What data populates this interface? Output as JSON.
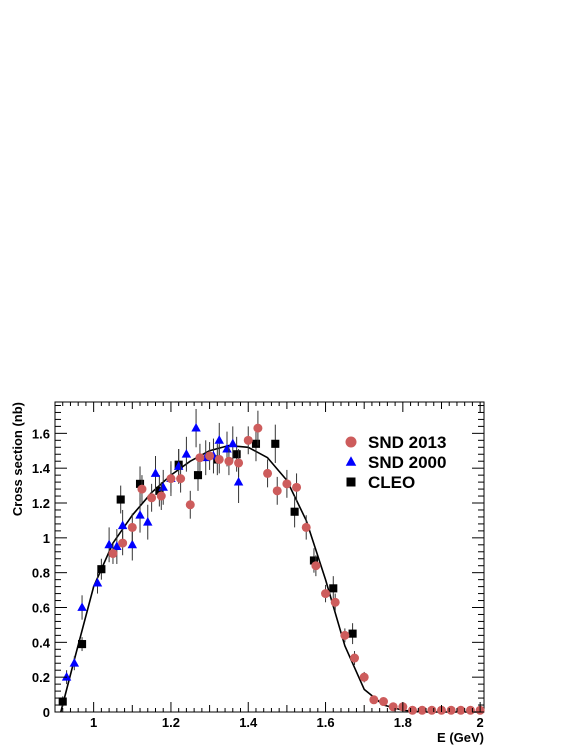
{
  "chart_data": {
    "type": "scatter",
    "xlabel": "E (GeV)",
    "ylabel": "Cross section (nb)",
    "xlim": [
      0.9,
      2.01
    ],
    "ylim": [
      0,
      1.78
    ],
    "x_ticks": [
      1,
      1.2,
      1.4,
      1.6,
      1.8,
      2
    ],
    "y_ticks": [
      0,
      0.2,
      0.4,
      0.6,
      0.8,
      1,
      1.2,
      1.4,
      1.6
    ],
    "legend_position": "top-right",
    "grid": false,
    "series": [
      {
        "name": "SND 2013",
        "marker": "circle",
        "color": "#cd5c5c",
        "points": [
          [
            1.05,
            0.91,
            0.06
          ],
          [
            1.075,
            0.97,
            0.07
          ],
          [
            1.1,
            1.06,
            0.08
          ],
          [
            1.125,
            1.28,
            0.08
          ],
          [
            1.15,
            1.23,
            0.08
          ],
          [
            1.175,
            1.24,
            0.08
          ],
          [
            1.2,
            1.34,
            0.08
          ],
          [
            1.225,
            1.34,
            0.08
          ],
          [
            1.25,
            1.19,
            0.08
          ],
          [
            1.275,
            1.46,
            0.08
          ],
          [
            1.3,
            1.47,
            0.08
          ],
          [
            1.325,
            1.45,
            0.08
          ],
          [
            1.35,
            1.44,
            0.08
          ],
          [
            1.375,
            1.43,
            0.08
          ],
          [
            1.4,
            1.56,
            0.08
          ],
          [
            1.425,
            1.63,
            0.1
          ],
          [
            1.45,
            1.37,
            0.08
          ],
          [
            1.475,
            1.27,
            0.08
          ],
          [
            1.5,
            1.31,
            0.08
          ],
          [
            1.525,
            1.29,
            0.08
          ],
          [
            1.55,
            1.06,
            0.07
          ],
          [
            1.575,
            0.84,
            0.06
          ],
          [
            1.6,
            0.68,
            0.05
          ],
          [
            1.625,
            0.63,
            0.05
          ],
          [
            1.65,
            0.44,
            0.04
          ],
          [
            1.675,
            0.31,
            0.04
          ],
          [
            1.7,
            0.2,
            0.03
          ],
          [
            1.725,
            0.07,
            0.02
          ],
          [
            1.75,
            0.06,
            0.02
          ],
          [
            1.775,
            0.03,
            0.02
          ],
          [
            1.8,
            0.03,
            0.01
          ],
          [
            1.825,
            0.01,
            0.01
          ],
          [
            1.85,
            0.01,
            0.01
          ],
          [
            1.875,
            0.01,
            0.01
          ],
          [
            1.9,
            0.01,
            0.01
          ],
          [
            1.925,
            0.01,
            0.01
          ],
          [
            1.95,
            0.01,
            0.01
          ],
          [
            1.975,
            0.01,
            0.01
          ],
          [
            2.0,
            0.01,
            0.01
          ]
        ]
      },
      {
        "name": "SND 2000",
        "marker": "triangle",
        "color": "#0000ff",
        "points": [
          [
            0.93,
            0.2,
            0.04
          ],
          [
            0.95,
            0.28,
            0.04
          ],
          [
            0.97,
            0.6,
            0.07
          ],
          [
            1.01,
            0.74,
            0.06
          ],
          [
            1.04,
            0.96,
            0.1
          ],
          [
            1.06,
            0.95,
            0.1
          ],
          [
            1.075,
            1.07,
            0.09
          ],
          [
            1.1,
            0.96,
            0.09
          ],
          [
            1.12,
            1.13,
            0.1
          ],
          [
            1.14,
            1.09,
            0.1
          ],
          [
            1.16,
            1.37,
            0.1
          ],
          [
            1.18,
            1.29,
            0.1
          ],
          [
            1.2,
            1.34,
            0.1
          ],
          [
            1.22,
            1.41,
            0.1
          ],
          [
            1.24,
            1.48,
            0.1
          ],
          [
            1.265,
            1.63,
            0.11
          ],
          [
            1.29,
            1.46,
            0.1
          ],
          [
            1.31,
            1.47,
            0.1
          ],
          [
            1.325,
            1.56,
            0.1
          ],
          [
            1.345,
            1.51,
            0.1
          ],
          [
            1.36,
            1.54,
            0.1
          ],
          [
            1.375,
            1.32,
            0.12
          ]
        ]
      },
      {
        "name": "CLEO",
        "marker": "square",
        "color": "#000000",
        "points": [
          [
            0.92,
            0.06,
            0.03
          ],
          [
            0.97,
            0.39,
            0.04
          ],
          [
            1.02,
            0.82,
            0.06
          ],
          [
            1.07,
            1.22,
            0.08
          ],
          [
            1.12,
            1.31,
            0.1
          ],
          [
            1.17,
            1.27,
            0.09
          ],
          [
            1.22,
            1.42,
            0.09
          ],
          [
            1.27,
            1.36,
            0.09
          ],
          [
            1.32,
            1.45,
            0.09
          ],
          [
            1.37,
            1.48,
            0.1
          ],
          [
            1.42,
            1.54,
            0.1
          ],
          [
            1.47,
            1.54,
            0.11
          ],
          [
            1.52,
            1.15,
            0.09
          ],
          [
            1.57,
            0.87,
            0.07
          ],
          [
            1.62,
            0.71,
            0.07
          ],
          [
            1.67,
            0.45,
            0.06
          ]
        ]
      }
    ],
    "fit_curve": {
      "x": [
        0.915,
        0.95,
        1.0,
        1.05,
        1.1,
        1.15,
        1.2,
        1.25,
        1.3,
        1.35,
        1.4,
        1.45,
        1.5,
        1.55,
        1.6,
        1.65,
        1.7,
        1.75,
        1.8,
        1.85,
        1.9,
        1.95,
        2.0
      ],
      "y": [
        0.0,
        0.3,
        0.72,
        0.97,
        1.13,
        1.26,
        1.36,
        1.44,
        1.5,
        1.53,
        1.52,
        1.46,
        1.33,
        1.1,
        0.76,
        0.38,
        0.13,
        0.04,
        0.01,
        0.0,
        0.0,
        0.0,
        0.0
      ]
    }
  }
}
